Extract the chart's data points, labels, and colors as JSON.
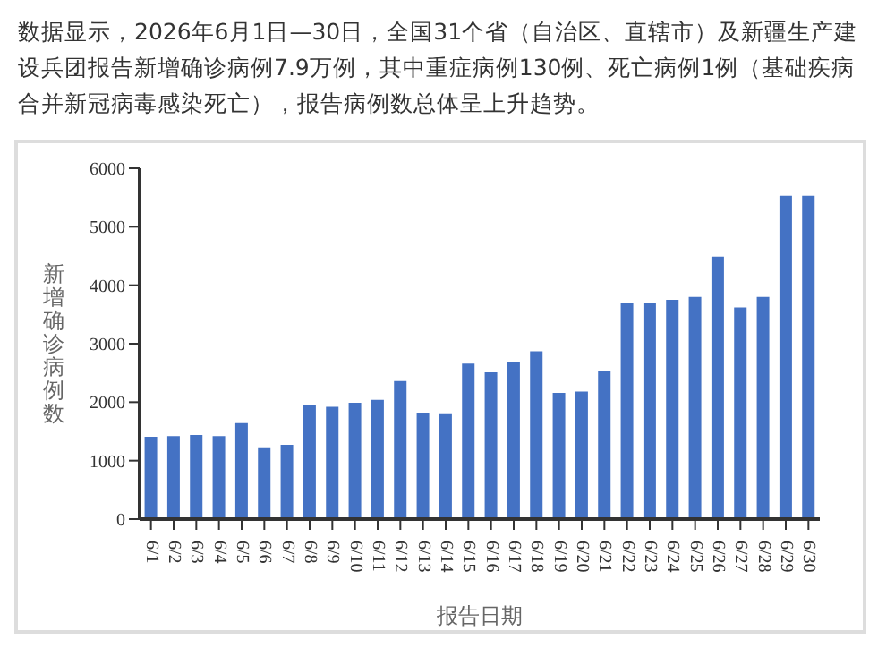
{
  "chart_data": {
    "type": "bar",
    "title": "数据显示，2026年6月1日—30日，全国31个省（自治区、直辖市）及新疆生产建设兵团报告新增确诊病例7.9万例，其中重症病例130例、死亡病例1例（基础疾病合并新冠病毒感染死亡），报告病例数总体呈上升趋势。",
    "xlabel": "报告日期",
    "ylabel": "新增确诊病例数",
    "categories": [
      "6/1",
      "6/2",
      "6/3",
      "6/4",
      "6/5",
      "6/6",
      "6/7",
      "6/8",
      "6/9",
      "6/10",
      "6/11",
      "6/12",
      "6/13",
      "6/14",
      "6/15",
      "6/16",
      "6/17",
      "6/18",
      "6/19",
      "6/20",
      "6/21",
      "6/22",
      "6/23",
      "6/24",
      "6/25",
      "6/26",
      "6/27",
      "6/28",
      "6/29",
      "6/30"
    ],
    "values": [
      1410,
      1420,
      1440,
      1420,
      1640,
      1230,
      1270,
      1950,
      1920,
      1990,
      2040,
      2360,
      1820,
      1810,
      2660,
      2510,
      2680,
      2870,
      2160,
      2180,
      2530,
      3700,
      3690,
      3750,
      3800,
      4490,
      3620,
      3800,
      5530,
      5530
    ],
    "color": "#4472c4",
    "ylim": [
      0,
      6000
    ],
    "yticks": [
      0,
      1000,
      2000,
      3000,
      4000,
      5000,
      6000
    ],
    "grid": false,
    "legend": false
  }
}
